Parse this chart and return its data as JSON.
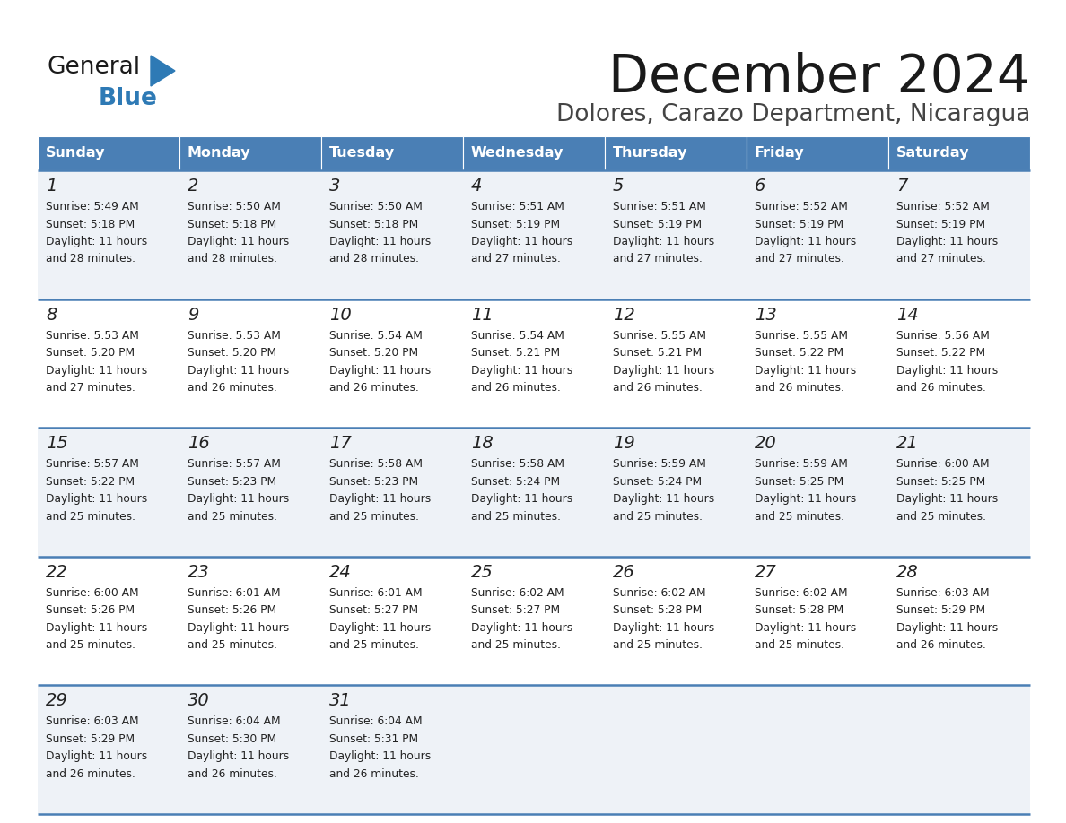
{
  "title": "December 2024",
  "subtitle": "Dolores, Carazo Department, Nicaragua",
  "header_bg": "#4a7fb5",
  "header_text": "#ffffff",
  "header_days": [
    "Sunday",
    "Monday",
    "Tuesday",
    "Wednesday",
    "Thursday",
    "Friday",
    "Saturday"
  ],
  "row_bg_odd": "#eef2f7",
  "row_bg_even": "#ffffff",
  "cell_border_color": "#4a7fb5",
  "day_number_color": "#222222",
  "info_text_color": "#222222",
  "title_color": "#1a1a1a",
  "subtitle_color": "#444444",
  "calendar": [
    [
      {
        "day": 1,
        "sunrise": "5:49 AM",
        "sunset": "5:18 PM",
        "daylight": "11 hours and 28 minutes"
      },
      {
        "day": 2,
        "sunrise": "5:50 AM",
        "sunset": "5:18 PM",
        "daylight": "11 hours and 28 minutes"
      },
      {
        "day": 3,
        "sunrise": "5:50 AM",
        "sunset": "5:18 PM",
        "daylight": "11 hours and 28 minutes"
      },
      {
        "day": 4,
        "sunrise": "5:51 AM",
        "sunset": "5:19 PM",
        "daylight": "11 hours and 27 minutes"
      },
      {
        "day": 5,
        "sunrise": "5:51 AM",
        "sunset": "5:19 PM",
        "daylight": "11 hours and 27 minutes"
      },
      {
        "day": 6,
        "sunrise": "5:52 AM",
        "sunset": "5:19 PM",
        "daylight": "11 hours and 27 minutes"
      },
      {
        "day": 7,
        "sunrise": "5:52 AM",
        "sunset": "5:19 PM",
        "daylight": "11 hours and 27 minutes"
      }
    ],
    [
      {
        "day": 8,
        "sunrise": "5:53 AM",
        "sunset": "5:20 PM",
        "daylight": "11 hours and 27 minutes"
      },
      {
        "day": 9,
        "sunrise": "5:53 AM",
        "sunset": "5:20 PM",
        "daylight": "11 hours and 26 minutes"
      },
      {
        "day": 10,
        "sunrise": "5:54 AM",
        "sunset": "5:20 PM",
        "daylight": "11 hours and 26 minutes"
      },
      {
        "day": 11,
        "sunrise": "5:54 AM",
        "sunset": "5:21 PM",
        "daylight": "11 hours and 26 minutes"
      },
      {
        "day": 12,
        "sunrise": "5:55 AM",
        "sunset": "5:21 PM",
        "daylight": "11 hours and 26 minutes"
      },
      {
        "day": 13,
        "sunrise": "5:55 AM",
        "sunset": "5:22 PM",
        "daylight": "11 hours and 26 minutes"
      },
      {
        "day": 14,
        "sunrise": "5:56 AM",
        "sunset": "5:22 PM",
        "daylight": "11 hours and 26 minutes"
      }
    ],
    [
      {
        "day": 15,
        "sunrise": "5:57 AM",
        "sunset": "5:22 PM",
        "daylight": "11 hours and 25 minutes"
      },
      {
        "day": 16,
        "sunrise": "5:57 AM",
        "sunset": "5:23 PM",
        "daylight": "11 hours and 25 minutes"
      },
      {
        "day": 17,
        "sunrise": "5:58 AM",
        "sunset": "5:23 PM",
        "daylight": "11 hours and 25 minutes"
      },
      {
        "day": 18,
        "sunrise": "5:58 AM",
        "sunset": "5:24 PM",
        "daylight": "11 hours and 25 minutes"
      },
      {
        "day": 19,
        "sunrise": "5:59 AM",
        "sunset": "5:24 PM",
        "daylight": "11 hours and 25 minutes"
      },
      {
        "day": 20,
        "sunrise": "5:59 AM",
        "sunset": "5:25 PM",
        "daylight": "11 hours and 25 minutes"
      },
      {
        "day": 21,
        "sunrise": "6:00 AM",
        "sunset": "5:25 PM",
        "daylight": "11 hours and 25 minutes"
      }
    ],
    [
      {
        "day": 22,
        "sunrise": "6:00 AM",
        "sunset": "5:26 PM",
        "daylight": "11 hours and 25 minutes"
      },
      {
        "day": 23,
        "sunrise": "6:01 AM",
        "sunset": "5:26 PM",
        "daylight": "11 hours and 25 minutes"
      },
      {
        "day": 24,
        "sunrise": "6:01 AM",
        "sunset": "5:27 PM",
        "daylight": "11 hours and 25 minutes"
      },
      {
        "day": 25,
        "sunrise": "6:02 AM",
        "sunset": "5:27 PM",
        "daylight": "11 hours and 25 minutes"
      },
      {
        "day": 26,
        "sunrise": "6:02 AM",
        "sunset": "5:28 PM",
        "daylight": "11 hours and 25 minutes"
      },
      {
        "day": 27,
        "sunrise": "6:02 AM",
        "sunset": "5:28 PM",
        "daylight": "11 hours and 25 minutes"
      },
      {
        "day": 28,
        "sunrise": "6:03 AM",
        "sunset": "5:29 PM",
        "daylight": "11 hours and 26 minutes"
      }
    ],
    [
      {
        "day": 29,
        "sunrise": "6:03 AM",
        "sunset": "5:29 PM",
        "daylight": "11 hours and 26 minutes"
      },
      {
        "day": 30,
        "sunrise": "6:04 AM",
        "sunset": "5:30 PM",
        "daylight": "11 hours and 26 minutes"
      },
      {
        "day": 31,
        "sunrise": "6:04 AM",
        "sunset": "5:31 PM",
        "daylight": "11 hours and 26 minutes"
      },
      null,
      null,
      null,
      null
    ]
  ],
  "logo_general_color": "#1a1a1a",
  "logo_blue_color": "#2e7ab5",
  "logo_triangle_color": "#2e7ab5"
}
